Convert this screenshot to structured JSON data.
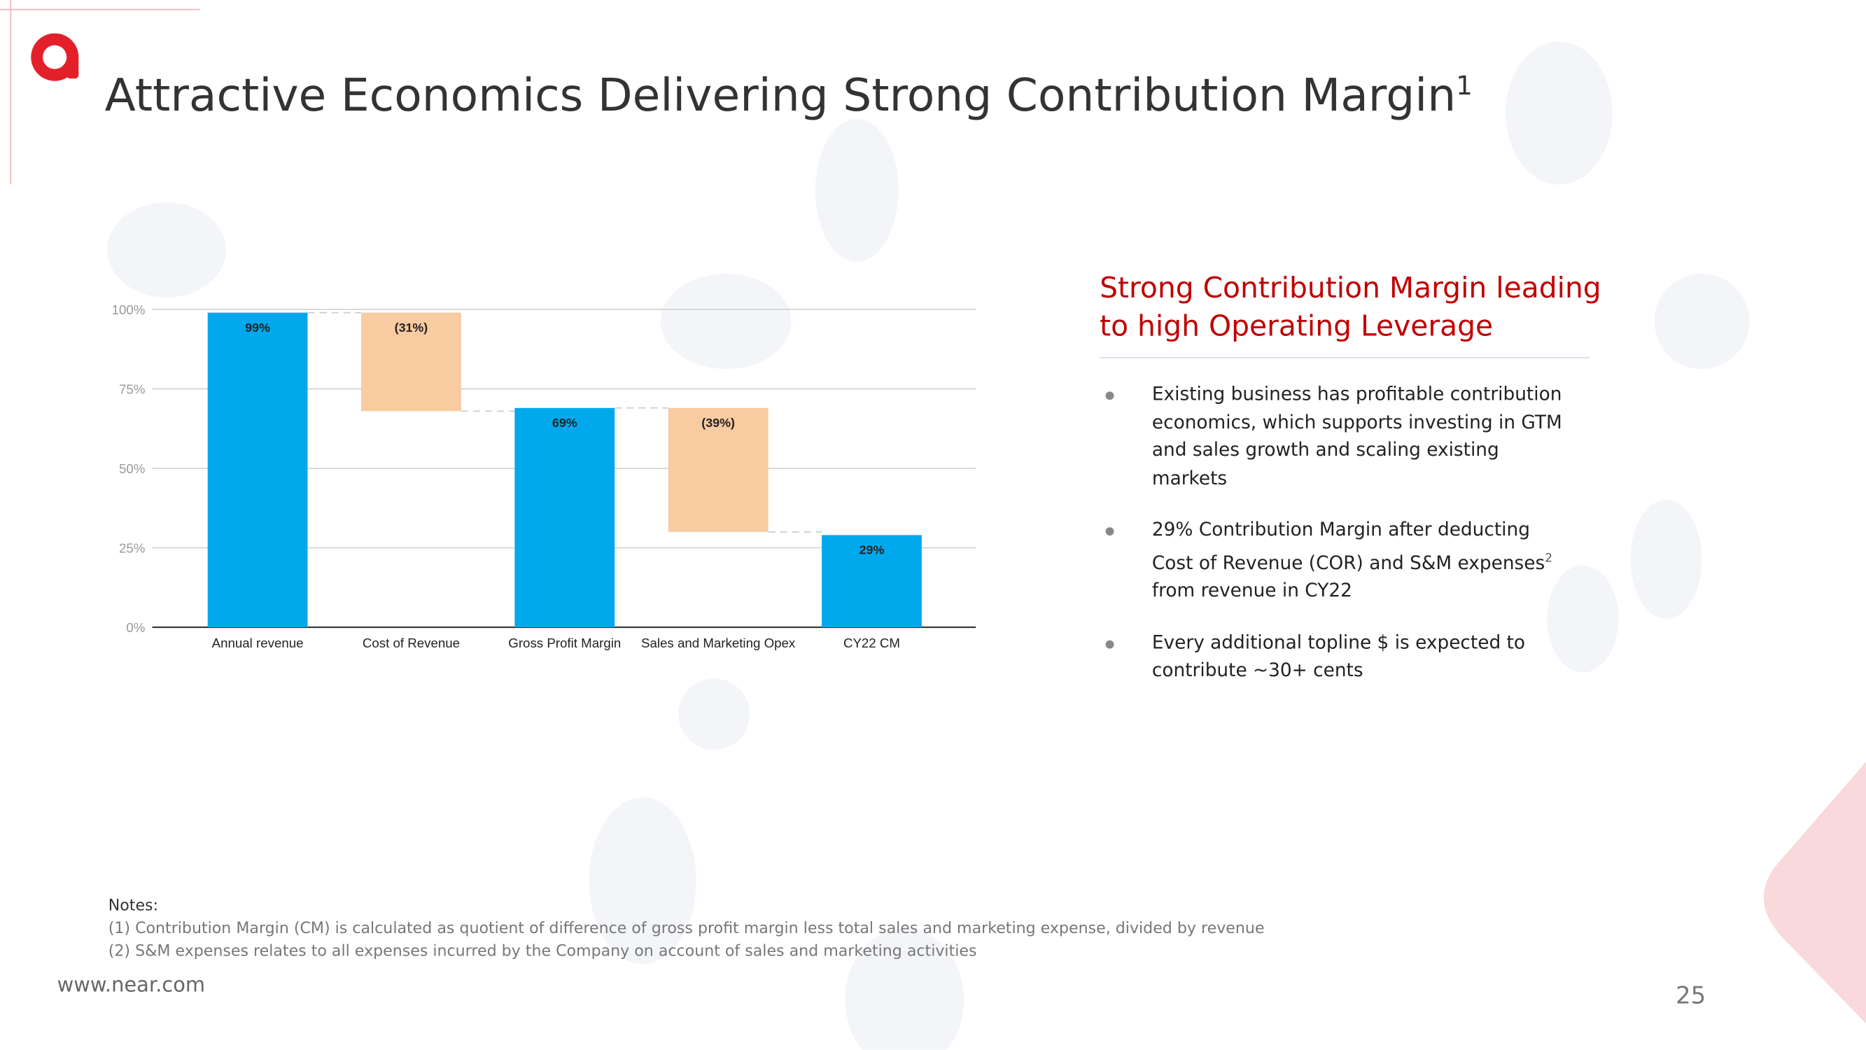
{
  "header": {
    "title": "Attractive Economics Delivering Strong Contribution Margin",
    "title_note": "1"
  },
  "chart_data": {
    "type": "waterfall",
    "categories": [
      "Annual revenue",
      "Cost of Revenue",
      "Gross Profit Margin",
      "Sales and Marketing Opex",
      "CY22 CM"
    ],
    "values": [
      99,
      -31,
      69,
      -39,
      29
    ],
    "value_labels": [
      "99%",
      "(31%)",
      "69%",
      "(39%)",
      "29%"
    ],
    "color": "#00a9ec",
    "negative_color": "#f8cba0",
    "ylim": [
      0,
      100
    ],
    "yticks": [
      {
        "value": 0,
        "label": "0%"
      },
      {
        "value": 25,
        "label": "25%"
      },
      {
        "value": 50,
        "label": "50%"
      },
      {
        "value": 75,
        "label": "75%"
      },
      {
        "value": 100,
        "label": "100%"
      }
    ],
    "grid": true
  },
  "panel": {
    "heading": "Strong Contribution Margin leading to high Operating Leverage",
    "bullets": [
      {
        "text": "Existing business has profitable contribution economics, which supports investing in GTM and sales growth and scaling existing markets"
      },
      {
        "text": "29% Contribution Margin after deducting Cost of Revenue (COR) and S&M expenses",
        "note": "2",
        "text_after": "from revenue in CY22"
      },
      {
        "text": "Every additional topline $ is expected to contribute ~30+ cents"
      }
    ]
  },
  "notes": {
    "heading": "Notes:",
    "lines": [
      "(1) Contribution Margin (CM) is calculated as quotient of difference of gross profit margin less total sales and marketing expense, divided by revenue",
      "(2) S&M expenses relates to all expenses incurred by the Company on account of sales and marketing activities"
    ]
  },
  "footer": {
    "url": "www.near.com",
    "page": "25"
  }
}
